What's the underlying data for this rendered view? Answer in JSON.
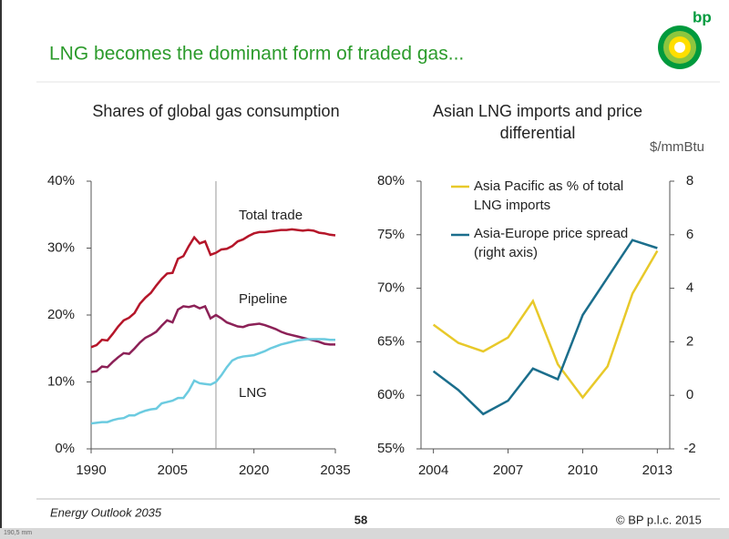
{
  "slide_title": "LNG becomes the dominant form of traded gas...",
  "logo_text": "bp",
  "footer": {
    "source": "Energy Outlook 2035",
    "page": "58",
    "copyright": "© BP p.l.c. 2015",
    "ruler_label": "190,5 mm"
  },
  "chart_data": [
    {
      "type": "line",
      "title": "Shares of global gas consumption",
      "x": [
        1990,
        1991,
        1992,
        1993,
        1994,
        1995,
        1996,
        1997,
        1998,
        1999,
        2000,
        2001,
        2002,
        2003,
        2004,
        2005,
        2006,
        2007,
        2008,
        2009,
        2010,
        2011,
        2012,
        2013,
        2014,
        2015,
        2016,
        2017,
        2018,
        2019,
        2020,
        2021,
        2022,
        2023,
        2024,
        2025,
        2026,
        2027,
        2028,
        2029,
        2030,
        2031,
        2032,
        2033,
        2034,
        2035
      ],
      "series": [
        {
          "name": "Total trade",
          "color": "#b5162a",
          "values": [
            15.2,
            15.5,
            16.3,
            16.2,
            17.2,
            18.3,
            19.2,
            19.6,
            20.3,
            21.7,
            22.6,
            23.3,
            24.4,
            25.4,
            26.2,
            26.3,
            28.4,
            28.8,
            30.3,
            31.6,
            30.7,
            31.0,
            29.0,
            29.3,
            29.8,
            29.9,
            30.3,
            31.0,
            31.3,
            31.8,
            32.2,
            32.4,
            32.4,
            32.5,
            32.6,
            32.7,
            32.7,
            32.8,
            32.7,
            32.6,
            32.7,
            32.6,
            32.3,
            32.2,
            32.0,
            31.9
          ]
        },
        {
          "name": "Pipeline",
          "color": "#8c2157",
          "values": [
            11.5,
            11.6,
            12.3,
            12.2,
            13.0,
            13.7,
            14.3,
            14.2,
            15.0,
            15.9,
            16.6,
            17.0,
            17.5,
            18.4,
            19.2,
            18.9,
            20.8,
            21.3,
            21.2,
            21.4,
            21.0,
            21.3,
            19.5,
            20.0,
            19.5,
            18.9,
            18.6,
            18.3,
            18.2,
            18.5,
            18.6,
            18.7,
            18.5,
            18.2,
            17.9,
            17.5,
            17.2,
            17.0,
            16.8,
            16.6,
            16.4,
            16.2,
            16.0,
            15.7,
            15.6,
            15.6
          ]
        },
        {
          "name": "LNG",
          "color": "#6ccbe0",
          "values": [
            3.8,
            3.9,
            4.0,
            4.0,
            4.3,
            4.5,
            4.6,
            5.0,
            5.0,
            5.4,
            5.7,
            5.9,
            6.0,
            6.8,
            7.0,
            7.2,
            7.6,
            7.6,
            8.7,
            10.2,
            9.8,
            9.7,
            9.6,
            10.0,
            11.0,
            12.2,
            13.2,
            13.6,
            13.8,
            13.9,
            14.0,
            14.3,
            14.6,
            15.0,
            15.3,
            15.6,
            15.8,
            16.0,
            16.2,
            16.3,
            16.4,
            16.4,
            16.4,
            16.4,
            16.3,
            16.3
          ]
        }
      ],
      "xlim": [
        1990,
        2035
      ],
      "xticks": [
        1990,
        2005,
        2020,
        2035
      ],
      "ylim": [
        0,
        40
      ],
      "yticks": [
        {
          "value": 0,
          "label": "0%"
        },
        {
          "value": 10,
          "label": "10%"
        },
        {
          "value": 20,
          "label": "20%"
        },
        {
          "value": 30,
          "label": "30%"
        },
        {
          "value": 40,
          "label": "40%"
        }
      ],
      "divider_x": 2013
    },
    {
      "type": "line",
      "title": "Asian LNG imports and price differential",
      "x": [
        2004,
        2005,
        2006,
        2007,
        2008,
        2009,
        2010,
        2011,
        2012,
        2013
      ],
      "series": [
        {
          "name": "Asia Pacific as % of total LNG imports",
          "color": "#e8c92a",
          "values": [
            66.6,
            64.9,
            64.1,
            65.4,
            68.8,
            62.9,
            59.8,
            62.7,
            69.5,
            73.5
          ]
        },
        {
          "name": "Asia-Europe price spread (right axis)",
          "color": "#1b6e8c",
          "axis": "y2",
          "values": [
            0.9,
            0.2,
            -0.7,
            -0.2,
            1.0,
            0.6,
            3.0,
            4.4,
            5.8,
            5.5
          ]
        }
      ],
      "xlim": [
        2003.5,
        2013.5
      ],
      "xticks": [
        2004,
        2007,
        2010,
        2013
      ],
      "ylim": [
        55,
        80
      ],
      "yticks": [
        {
          "value": 55,
          "label": "55%"
        },
        {
          "value": 60,
          "label": "60%"
        },
        {
          "value": 65,
          "label": "65%"
        },
        {
          "value": 70,
          "label": "70%"
        },
        {
          "value": 75,
          "label": "75%"
        },
        {
          "value": 80,
          "label": "80%"
        }
      ],
      "y2label": "$/mmBtu",
      "y2lim": [
        -2,
        8
      ],
      "y2ticks": [
        -2,
        0,
        2,
        4,
        6,
        8
      ]
    }
  ]
}
